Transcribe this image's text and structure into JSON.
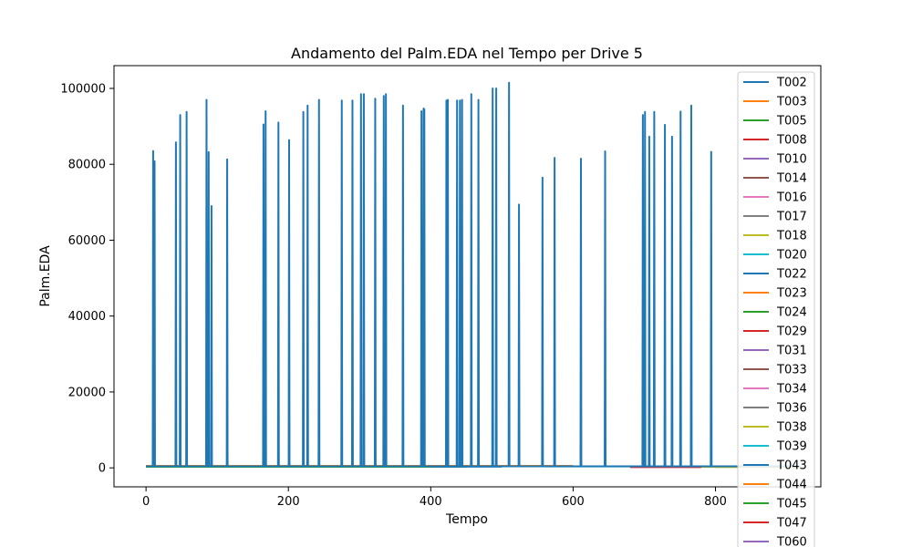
{
  "chart_data": {
    "type": "line",
    "title": "Andamento del Palm.EDA nel Tempo per Drive 5",
    "xlabel": "Tempo",
    "ylabel": "Palm.EDA",
    "xlim": [
      -45,
      948
    ],
    "ylim": [
      -5000,
      106000
    ],
    "xticks": [
      0,
      200,
      400,
      600,
      800
    ],
    "yticks": [
      0,
      20000,
      40000,
      60000,
      80000,
      100000
    ],
    "xtick_labels": [
      "0",
      "200",
      "400",
      "600",
      "800"
    ],
    "ytick_labels": [
      "0",
      "20000",
      "40000",
      "60000",
      "80000",
      "100000"
    ],
    "grid": false,
    "legend_position": "right",
    "series": [
      {
        "name": "T002",
        "color": "#1f77b4",
        "x_range": [
          0,
          920
        ],
        "baseline": 400,
        "spikes": [
          [
            10,
            83500
          ],
          [
            12,
            80800
          ],
          [
            42,
            85800
          ],
          [
            48,
            93000
          ],
          [
            57,
            93800
          ],
          [
            85,
            97000
          ],
          [
            88,
            83200
          ],
          [
            92,
            69000
          ],
          [
            114,
            81300
          ],
          [
            165,
            90500
          ],
          [
            168,
            94000
          ],
          [
            186,
            91000
          ],
          [
            201,
            86400
          ],
          [
            221,
            93800
          ],
          [
            227,
            95500
          ],
          [
            243,
            97000
          ],
          [
            275,
            96800
          ],
          [
            290,
            96800
          ],
          [
            302,
            98500
          ],
          [
            306,
            98500
          ],
          [
            322,
            97300
          ],
          [
            334,
            98000
          ],
          [
            337,
            98500
          ],
          [
            361,
            95500
          ],
          [
            387,
            94000
          ],
          [
            390,
            94700
          ],
          [
            391,
            94500
          ],
          [
            422,
            96800
          ],
          [
            424,
            97000
          ],
          [
            437,
            96800
          ],
          [
            441,
            96800
          ],
          [
            444,
            97000
          ],
          [
            457,
            98500
          ],
          [
            467,
            97000
          ],
          [
            487,
            100000
          ],
          [
            492,
            100000
          ],
          [
            510,
            101500
          ],
          [
            524,
            69400
          ],
          [
            557,
            76500
          ],
          [
            574,
            81700
          ],
          [
            611,
            81500
          ],
          [
            645,
            83400
          ],
          [
            698,
            93000
          ],
          [
            701,
            93800
          ],
          [
            707,
            87300
          ],
          [
            714,
            93800
          ],
          [
            729,
            90400
          ],
          [
            739,
            87300
          ],
          [
            751,
            93900
          ],
          [
            766,
            95500
          ],
          [
            794,
            83300
          ]
        ]
      },
      {
        "name": "T003",
        "color": "#ff7f0e",
        "x_range": [
          0,
          560
        ],
        "baseline": 500,
        "spikes": []
      },
      {
        "name": "T005",
        "color": "#2ca02c",
        "x_range": [
          0,
          400
        ],
        "baseline": 300,
        "spikes": []
      },
      {
        "name": "T008",
        "color": "#d62728",
        "x_range": [
          680,
          780
        ],
        "baseline": 200,
        "spikes": []
      },
      {
        "name": "T010",
        "color": "#9467bd",
        "x_range": [
          0,
          300
        ],
        "baseline": 350,
        "spikes": []
      },
      {
        "name": "T014",
        "color": "#8c564b",
        "x_range": [
          0,
          250
        ],
        "baseline": 450,
        "spikes": []
      },
      {
        "name": "T016",
        "color": "#e377c2",
        "x_range": [
          0,
          200
        ],
        "baseline": 320,
        "spikes": []
      },
      {
        "name": "T017",
        "color": "#7f7f7f",
        "x_range": [
          0,
          350
        ],
        "baseline": 420,
        "spikes": []
      },
      {
        "name": "T018",
        "color": "#bcbd22",
        "x_range": [
          760,
          900
        ],
        "baseline": 250,
        "spikes": []
      },
      {
        "name": "T020",
        "color": "#17becf",
        "x_range": [
          560,
          700
        ],
        "baseline": 380,
        "spikes": []
      },
      {
        "name": "T022",
        "color": "#1f77b4",
        "x_range": [
          0,
          500
        ],
        "baseline": 330,
        "spikes": []
      },
      {
        "name": "T023",
        "color": "#ff7f0e",
        "x_range": [
          0,
          600
        ],
        "baseline": 520,
        "spikes": []
      },
      {
        "name": "T024",
        "color": "#2ca02c",
        "x_range": [
          0,
          450
        ],
        "baseline": 300,
        "spikes": []
      },
      {
        "name": "T029",
        "color": "#d62728",
        "x_range": [
          0,
          300
        ],
        "baseline": 280,
        "spikes": []
      },
      {
        "name": "T031",
        "color": "#9467bd",
        "x_range": [
          0,
          280
        ],
        "baseline": 310,
        "spikes": []
      },
      {
        "name": "T033",
        "color": "#8c564b",
        "x_range": [
          0,
          320
        ],
        "baseline": 400,
        "spikes": []
      },
      {
        "name": "T034",
        "color": "#e377c2",
        "x_range": [
          0,
          260
        ],
        "baseline": 360,
        "spikes": []
      },
      {
        "name": "T036",
        "color": "#7f7f7f",
        "x_range": [
          0,
          340
        ],
        "baseline": 340,
        "spikes": []
      },
      {
        "name": "T038",
        "color": "#bcbd22",
        "x_range": [
          800,
          920
        ],
        "baseline": 240,
        "spikes": []
      },
      {
        "name": "T039",
        "color": "#17becf",
        "x_range": [
          0,
          380
        ],
        "baseline": 300,
        "spikes": []
      },
      {
        "name": "T043",
        "color": "#1f77b4",
        "x_range": [
          0,
          420
        ],
        "baseline": 290,
        "spikes": []
      },
      {
        "name": "T044",
        "color": "#ff7f0e",
        "x_range": [
          0,
          480
        ],
        "baseline": 480,
        "spikes": []
      },
      {
        "name": "T045",
        "color": "#2ca02c",
        "x_range": [
          0,
          300
        ],
        "baseline": 310,
        "spikes": []
      },
      {
        "name": "T047",
        "color": "#d62728",
        "x_range": [
          0,
          260
        ],
        "baseline": 300,
        "spikes": []
      },
      {
        "name": "T060",
        "color": "#9467bd",
        "x_range": [
          0,
          240
        ],
        "baseline": 300,
        "spikes": []
      }
    ]
  }
}
